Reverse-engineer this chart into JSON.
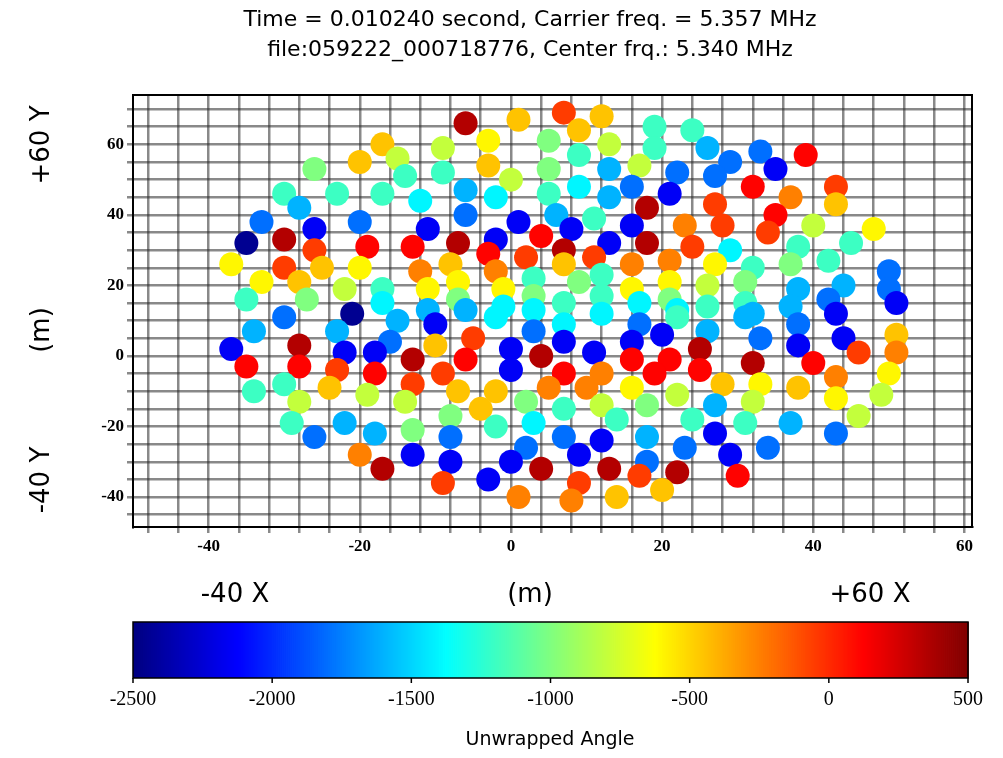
{
  "chart_data": {
    "type": "scatter",
    "title": "Time = 0.010240 second, Carrier freq. = 5.357 MHz",
    "subtitle": "file:059222_000718776, Center frq.: 5.340 MHz",
    "xlabel": "(m)",
    "ylabel": "(m)",
    "clabel": "Unwrapped Angle",
    "annotations": [
      "+60 Y",
      "-40 Y",
      "-40 X",
      "+60 X"
    ],
    "x": [
      -6,
      1,
      7,
      9,
      12,
      19,
      24,
      -9,
      -3,
      5,
      13,
      19,
      -3,
      -9,
      0,
      5,
      9,
      13,
      17,
      22,
      -6,
      -2,
      5,
      9,
      13,
      16,
      21,
      -12,
      -6,
      1,
      6,
      11,
      18,
      23,
      -11,
      -7,
      -2,
      4,
      8,
      13,
      16,
      18,
      24,
      -13,
      -3,
      2,
      7,
      11,
      21,
      -8,
      -12,
      -2,
      7,
      16,
      -11,
      -7,
      -1,
      3,
      9,
      12,
      16,
      21,
      -7,
      3,
      7,
      12,
      17,
      21,
      -11,
      -6,
      -1,
      3,
      22,
      26,
      29,
      33,
      39,
      35,
      27,
      32,
      37,
      43,
      43,
      27,
      28,
      35,
      34,
      40,
      48,
      29,
      38,
      45,
      27,
      32,
      37,
      42,
      50,
      26,
      31,
      38,
      44,
      50,
      51,
      26,
      31,
      37,
      42,
      43,
      32,
      -17,
      -15,
      -14,
      -20,
      -26,
      -30,
      -23,
      -17,
      -28,
      -33,
      -26,
      -20,
      -35,
      -30,
      -26,
      -19,
      -37,
      -30,
      -25,
      -20,
      -33,
      -28,
      -22,
      -17,
      -35,
      -27,
      -17,
      -30,
      -21,
      -34,
      -23,
      -15,
      -16,
      -37,
      -28,
      -22,
      -18,
      -13,
      -35,
      -28,
      -23,
      -18,
      -13,
      -34,
      -30,
      -24,
      -19,
      -14,
      -28,
      -29,
      -22,
      -18,
      -13,
      -26,
      -20,
      -17,
      -13,
      -2,
      7,
      12,
      22,
      -10,
      3,
      17,
      7,
      16,
      20,
      0,
      11,
      -10,
      -5,
      -6,
      4,
      16,
      21,
      -9,
      0,
      7,
      12,
      19,
      -7,
      -2,
      5,
      10,
      16,
      -4,
      2,
      12,
      18,
      22,
      -8,
      7,
      14,
      -2,
      3,
      24,
      -8,
      7,
      12,
      18,
      23,
      -8,
      2,
      9,
      18,
      0,
      -3,
      -9,
      4,
      13,
      9,
      17,
      22,
      1,
      8,
      14,
      20,
      31,
      26,
      33,
      38,
      44,
      51,
      51,
      25,
      38,
      46,
      25,
      32,
      40,
      28,
      33,
      38,
      43,
      50,
      43,
      49,
      27,
      32,
      46,
      31,
      37,
      27,
      43,
      29,
      34,
      30
    ],
    "values": [
      66,
      67,
      69,
      64,
      68,
      65,
      64,
      59,
      61,
      61,
      60,
      59,
      54,
      52,
      50,
      53,
      57,
      53,
      54,
      52,
      47,
      45,
      46,
      48,
      45,
      48,
      46,
      44,
      40,
      38,
      40,
      39,
      42,
      37,
      36,
      32,
      33,
      34,
      36,
      32,
      37,
      32,
      31,
      31,
      29,
      28,
      30,
      28,
      27,
      26,
      24,
      24,
      26,
      26,
      19,
      21,
      19,
      22,
      21,
      23,
      19,
      21,
      16,
      17,
      15,
      17,
      15,
      16,
      13,
      13,
      14,
      13,
      13,
      59,
      55,
      58,
      57,
      53,
      51,
      48,
      45,
      48,
      43,
      43,
      37,
      40,
      35,
      37,
      36,
      30,
      31,
      32,
      26,
      25,
      26,
      27,
      24,
      20,
      21,
      19,
      20,
      19,
      15,
      14,
      15,
      14,
      16,
      12,
      12,
      60,
      56,
      51,
      55,
      53,
      46,
      46,
      46,
      42,
      38,
      36,
      38,
      32,
      33,
      30,
      31,
      26,
      25,
      25,
      25,
      21,
      21,
      19,
      19,
      16,
      16,
      15,
      11,
      12,
      7,
      7,
      10,
      4,
      2,
      3,
      1,
      1,
      -1,
      -3,
      -3,
      -4,
      -5,
      -8,
      -10,
      -8,
      -9,
      -11,
      -13,
      -13,
      -19,
      -19,
      -22,
      -21,
      -23,
      -28,
      -32,
      -28,
      11,
      9,
      12,
      11,
      9,
      7,
      9,
      4,
      4,
      6,
      2,
      1,
      3,
      5,
      -1,
      0,
      -1,
      -1,
      -5,
      -4,
      -5,
      -5,
      -5,
      -10,
      -10,
      -9,
      -9,
      -9,
      -15,
      -13,
      -14,
      -14,
      -11,
      -17,
      -15,
      -18,
      -20,
      -19,
      -18,
      -23,
      -23,
      -24,
      -23,
      -26,
      -30,
      -26,
      -28,
      -30,
      -30,
      -35,
      -36,
      -32,
      -32,
      -36,
      -34,
      -33,
      -40,
      -41,
      -40,
      -38,
      11,
      7,
      5,
      9,
      5,
      6,
      1,
      2,
      3,
      1,
      -4,
      -2,
      -2,
      -8,
      -8,
      -9,
      -6,
      -5,
      -12,
      -11,
      -14,
      -13,
      -17,
      -19,
      -19,
      -22,
      -22,
      -28,
      -26,
      -34
    ],
    "cvalues": [
      350,
      -450,
      -50,
      -450,
      -450,
      -1200,
      -1200,
      -800,
      -600,
      -1000,
      -800,
      -1200,
      -450,
      -1200,
      -800,
      -1000,
      -1200,
      -1600,
      -800,
      -1800,
      -1600,
      -1400,
      -1200,
      -1400,
      -1600,
      -1800,
      -2150,
      -1400,
      -1800,
      -2150,
      -1600,
      -1200,
      350,
      -250,
      -2150,
      350,
      -2150,
      120,
      -2150,
      -2150,
      -2150,
      350,
      -50,
      120,
      120,
      -50,
      350,
      -50,
      -250,
      -450,
      -250,
      -250,
      -450,
      -250,
      -600,
      -600,
      -600,
      -1200,
      -1000,
      -1200,
      -600,
      -600,
      -1000,
      -1000,
      -1200,
      -1200,
      -1400,
      -1000,
      -1600,
      -1600,
      -1400,
      -1400,
      -1400,
      -1600,
      -1800,
      -1800,
      120,
      -2150,
      -1800,
      120,
      -250,
      -50,
      -450,
      -50,
      -50,
      120,
      -50,
      -800,
      -600,
      -1400,
      -1200,
      -1200,
      -600,
      -1200,
      -1000,
      -1200,
      -1800,
      -800,
      -1000,
      -1600,
      -1600,
      -1800,
      -2150,
      -1200,
      -1200,
      -1600,
      -1800,
      -2150,
      -1600,
      -450,
      -800,
      -1200,
      -450,
      -1000,
      -1200,
      -1200,
      -1200,
      -1600,
      -1800,
      -2150,
      -1800,
      -2450,
      350,
      -50,
      120,
      -600,
      -50,
      -450,
      -600,
      -600,
      -450,
      -800,
      -1200,
      -1200,
      -1000,
      -1400,
      -1800,
      -2450,
      -1600,
      -1600,
      -1600,
      -1800,
      -2150,
      350,
      -2150,
      -2150,
      350,
      120,
      120,
      -50,
      120,
      -50,
      -1200,
      -1200,
      -450,
      -800,
      -800,
      -800,
      -1200,
      -1600,
      -1600,
      -1000,
      -1800,
      -250,
      350,
      -2150,
      -1400,
      -1400,
      -1400,
      -1200,
      -2150,
      -1800,
      -1800,
      -2150,
      -2150,
      -2150,
      -2150,
      -2150,
      -450,
      -50,
      120,
      350,
      120,
      120,
      -50,
      -2150,
      120,
      -250,
      120,
      -450,
      -450,
      -250,
      -250,
      -600,
      -450,
      -1000,
      -800,
      -1000,
      -800,
      -1000,
      -1200,
      -1200,
      -1200,
      -1400,
      -1200,
      -1800,
      -1800,
      -2150,
      -1600,
      -1800,
      -2150,
      -1800,
      -2150,
      -1800,
      -2150,
      -2150,
      -50,
      350,
      350,
      -50,
      -50,
      350,
      -250,
      -250,
      -450,
      -450,
      -1600,
      -1600,
      -1800,
      -1800,
      -2150,
      -450,
      -250,
      350,
      -2150,
      -50,
      120,
      350,
      120,
      -450,
      -600,
      -450,
      -250,
      -600,
      -600,
      -800,
      -1600,
      -800,
      -800,
      -1200,
      -1600,
      -2150,
      -1800,
      -2150,
      -1800,
      120
    ],
    "clim": [
      -2500,
      500
    ],
    "cticks": [
      -2500,
      -2000,
      -1500,
      -1000,
      -500,
      0,
      500
    ],
    "xlim": [
      -50,
      61
    ],
    "xticks": [
      {
        "value": -48,
        "label": null
      },
      {
        "value": -44,
        "label": null
      },
      -40,
      {
        "value": -36,
        "label": null
      },
      {
        "value": -32,
        "label": null
      },
      {
        "value": -28,
        "label": null
      },
      {
        "value": -24,
        "label": null
      },
      -20,
      {
        "value": -16,
        "label": null
      },
      {
        "value": -12,
        "label": null
      },
      {
        "value": -8,
        "label": null
      },
      {
        "value": -4,
        "label": null
      },
      0,
      {
        "value": 4,
        "label": null
      },
      {
        "value": 8,
        "label": null
      },
      {
        "value": 12,
        "label": null
      },
      {
        "value": 16,
        "label": null
      },
      20,
      {
        "value": 24,
        "label": null
      },
      {
        "value": 28,
        "label": null
      },
      {
        "value": 32,
        "label": null
      },
      {
        "value": 36,
        "label": null
      },
      40,
      {
        "value": 44,
        "label": null
      },
      {
        "value": 48,
        "label": null
      },
      {
        "value": 52,
        "label": null
      },
      {
        "value": 56,
        "label": null
      },
      60
    ],
    "ylim": [
      -48.5,
      74
    ],
    "yticks": [
      {
        "value": -45,
        "label": null
      },
      -40,
      {
        "value": -35,
        "label": null
      },
      {
        "value": -30,
        "label": null
      },
      {
        "value": -25,
        "label": null
      },
      -20,
      {
        "value": -15,
        "label": null
      },
      {
        "value": -10,
        "label": null
      },
      {
        "value": -5,
        "label": null
      },
      0,
      {
        "value": 5,
        "label": null
      },
      {
        "value": 10,
        "label": null
      },
      {
        "value": 15,
        "label": null
      },
      20,
      {
        "value": 25,
        "label": null
      },
      {
        "value": 30,
        "label": null
      },
      {
        "value": 35,
        "label": null
      },
      40,
      {
        "value": 45,
        "label": null
      },
      {
        "value": 50,
        "label": null
      },
      {
        "value": 55,
        "label": null
      },
      60,
      {
        "value": 65,
        "label": null
      },
      {
        "value": 70,
        "label": null
      }
    ],
    "grid": true,
    "marker": "circle"
  }
}
